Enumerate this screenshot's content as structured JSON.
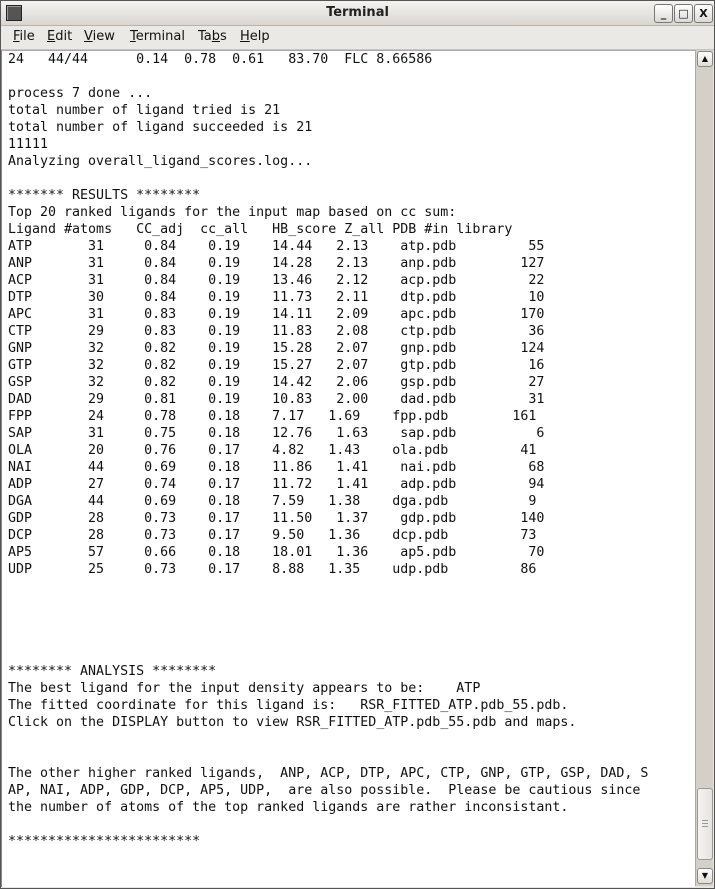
{
  "window": {
    "title": "Terminal"
  },
  "menu": [
    {
      "pre": "",
      "key": "F",
      "post": "ile"
    },
    {
      "pre": "",
      "key": "E",
      "post": "dit"
    },
    {
      "pre": "",
      "key": "V",
      "post": "iew"
    },
    {
      "pre": "",
      "key": "T",
      "post": "erminal"
    },
    {
      "pre": "Ta",
      "key": "b",
      "post": "s"
    },
    {
      "pre": "",
      "key": "H",
      "post": "elp"
    }
  ],
  "terminal": {
    "lines": [
      "24   44/44      0.14  0.78  0.61   83.70  FLC 8.66586",
      "",
      "process 7 done ...",
      "total number of ligand tried is 21",
      "total number of ligand succeeded is 21",
      "11111",
      "Analyzing overall_ligand_scores.log...",
      "",
      "******* RESULTS ********",
      "Top 20 ranked ligands for the input map based on cc sum:",
      "Ligand #atoms   CC_adj  cc_all   HB_score Z_all PDB #in library",
      "ATP       31     0.84    0.19    14.44   2.13    atp.pdb         55",
      "ANP       31     0.84    0.19    14.28   2.13    anp.pdb        127",
      "ACP       31     0.84    0.19    13.46   2.12    acp.pdb         22",
      "DTP       30     0.84    0.19    11.73   2.11    dtp.pdb         10",
      "APC       31     0.83    0.19    14.11   2.09    apc.pdb        170",
      "CTP       29     0.83    0.19    11.83   2.08    ctp.pdb         36",
      "GNP       32     0.82    0.19    15.28   2.07    gnp.pdb        124",
      "GTP       32     0.82    0.19    15.27   2.07    gtp.pdb         16",
      "GSP       32     0.82    0.19    14.42   2.06    gsp.pdb         27",
      "DAD       29     0.81    0.19    10.83   2.00    dad.pdb         31",
      "FPP       24     0.78    0.18    7.17   1.69    fpp.pdb        161",
      "SAP       31     0.75    0.18    12.76   1.63    sap.pdb          6",
      "OLA       20     0.76    0.17    4.82   1.43    ola.pdb         41",
      "NAI       44     0.69    0.18    11.86   1.41    nai.pdb         68",
      "ADP       27     0.74    0.17    11.72   1.41    adp.pdb         94",
      "DGA       44     0.69    0.18    7.59   1.38    dga.pdb          9",
      "GDP       28     0.73    0.17    11.50   1.37    gdp.pdb        140",
      "DCP       28     0.73    0.17    9.50   1.36    dcp.pdb         73",
      "AP5       57     0.66    0.18    18.01   1.36    ap5.pdb         70",
      "UDP       25     0.73    0.17    8.88   1.35    udp.pdb         86",
      "",
      "",
      "",
      "",
      "",
      "******** ANALYSIS ********",
      "The best ligand for the input density appears to be:    ATP",
      "The fitted coordinate for this ligand is:   RSR_FITTED_ATP.pdb_55.pdb.",
      "Click on the DISPLAY button to view RSR_FITTED_ATP.pdb_55.pdb and maps.",
      "",
      "",
      "The other higher ranked ligands,  ANP, ACP, DTP, APC, CTP, GNP, GTP, GSP, DAD, S",
      "AP, NAI, ADP, GDP, DCP, AP5, UDP,  are also possible.  Please be cautious since",
      "the number of atoms of the top ranked ligands are rather inconsistant.",
      "",
      "************************"
    ]
  },
  "window_buttons": {
    "minimize": "_",
    "maximize": "□",
    "close": "X"
  },
  "scrollbar": {
    "up": "▲",
    "down": "▼",
    "position_fraction": 0.93
  }
}
